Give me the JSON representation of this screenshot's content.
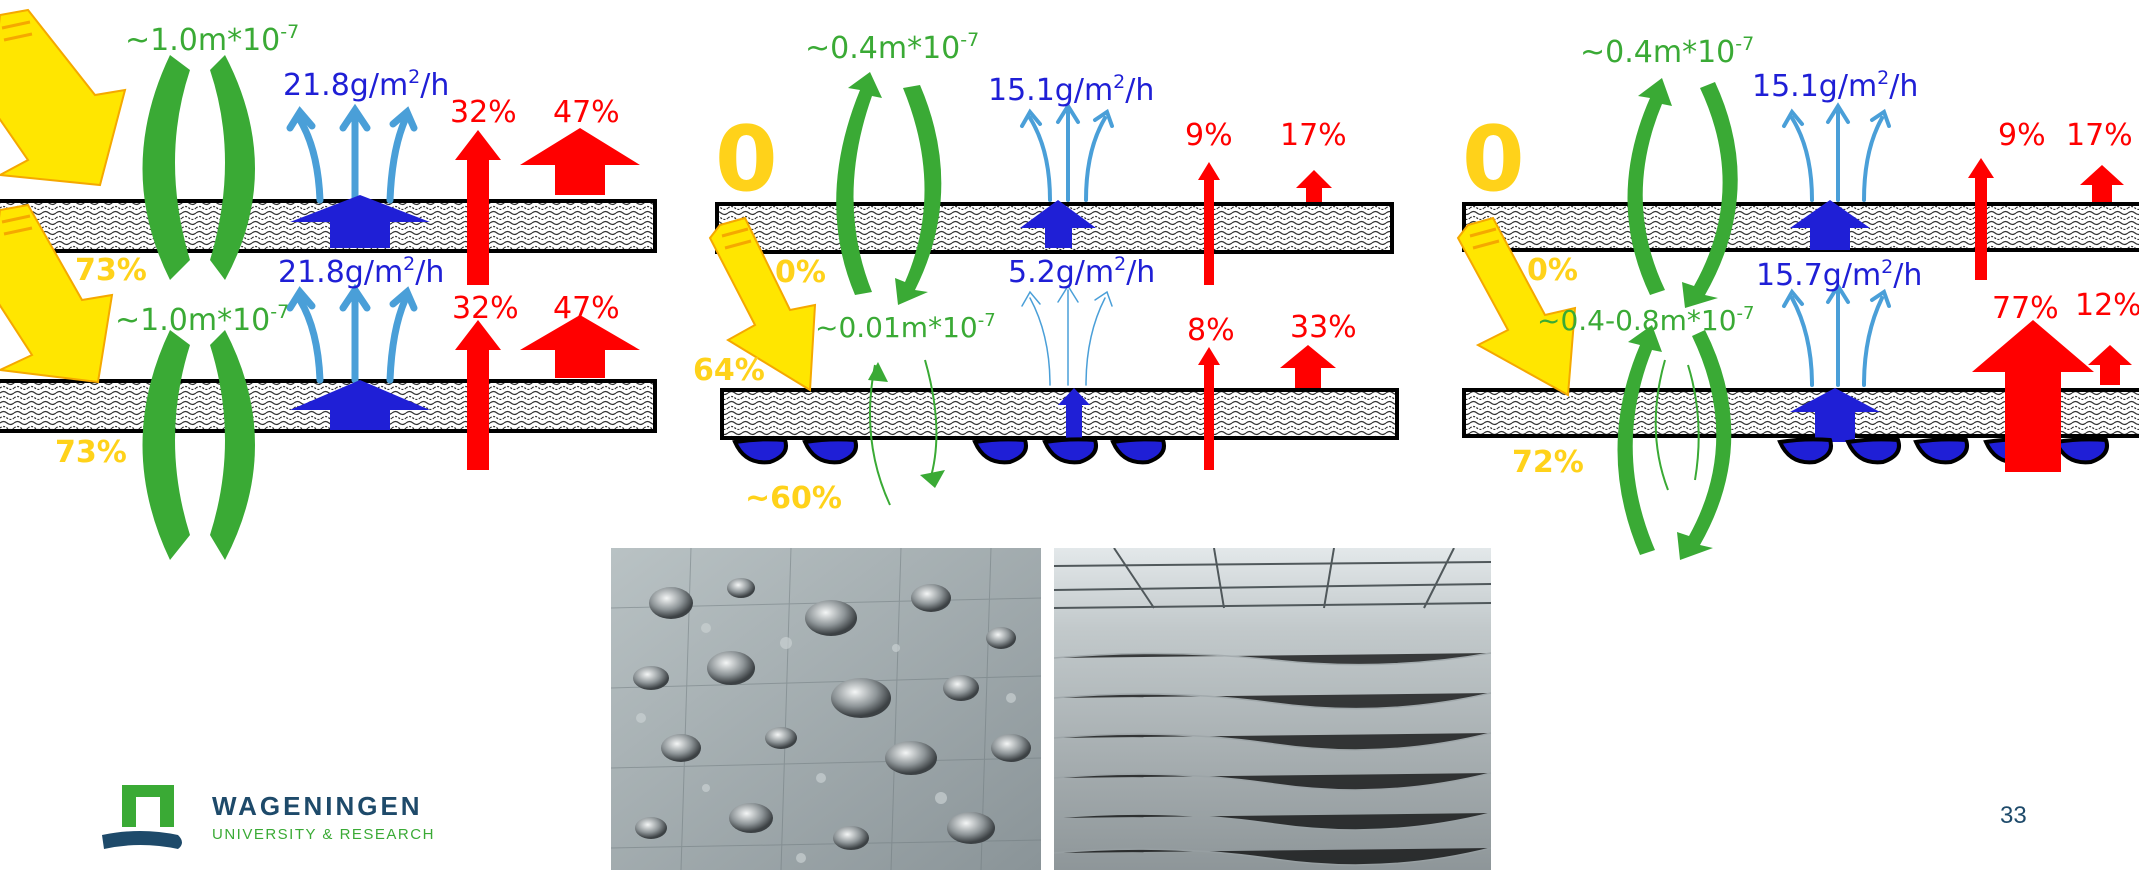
{
  "colors": {
    "green": "#3aaa35",
    "blue": "#1f1fd6",
    "light_blue": "#4a9fd8",
    "red": "#ff0000",
    "yellow": "#ffe600",
    "yellow_text": "#ffd21a",
    "logo_green": "#3aaa35",
    "logo_blue": "#1e4a6a"
  },
  "panel1": {
    "perm_top": "~1.0m*10",
    "perm_top_exp": "-7",
    "vapour_top": "21.8g/m",
    "vapour_top_sup": "2",
    "vapour_top_unit": "/h",
    "red_small_top": "32%",
    "red_big_top": "47%",
    "yellow_top": "73%",
    "perm_bottom": "~1.0m*10",
    "perm_bottom_exp": "-7",
    "vapour_bottom": "21.8g/m",
    "vapour_bottom_sup": "2",
    "vapour_bottom_unit": "/h",
    "red_small_bottom": "32%",
    "red_big_bottom": "47%",
    "yellow_bottom": "73%"
  },
  "panel2": {
    "zero": "0",
    "perm_top": "~0.4m*10",
    "perm_top_exp": "-7",
    "vapour_top": "15.1g/m",
    "vapour_top_sup": "2",
    "vapour_top_unit": "/h",
    "red_small_top": "9%",
    "red_big_top": "17%",
    "yellow_top": "0%",
    "vapour_bottom": "5.2g/m",
    "vapour_bottom_sup": "2",
    "vapour_bottom_unit": "/h",
    "perm_bottom": "~0.01m*10",
    "perm_bottom_exp": "-7",
    "red_small_bottom": "8%",
    "red_big_bottom": "33%",
    "yellow_bottom": "64%",
    "droplets": "~60%"
  },
  "panel3": {
    "zero": "0",
    "perm_top": "~0.4m*10",
    "perm_top_exp": "-7",
    "vapour_top": "15.1g/m",
    "vapour_top_sup": "2",
    "vapour_top_unit": "/h",
    "red_small_top": "9%",
    "red_big_top": "17%",
    "yellow_top": "0%",
    "vapour_bottom": "15.7g/m",
    "vapour_bottom_sup": "2",
    "vapour_bottom_unit": "/h",
    "perm_bottom": "~0.4-0.8m*10",
    "perm_bottom_exp": "-7",
    "red_big_bottom": "77%",
    "red_small_bottom": "12%",
    "yellow_bottom": "72%"
  },
  "logo": {
    "name": "WAGENINGEN",
    "sub": "UNIVERSITY & RESEARCH"
  },
  "page_number": "33"
}
